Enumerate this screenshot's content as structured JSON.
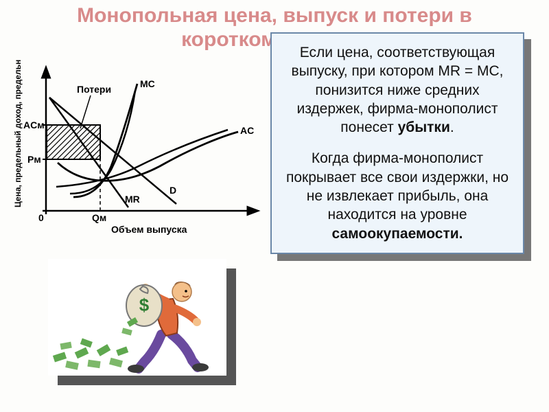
{
  "title": "Монопольная цена, выпуск и потери в коротком периоде",
  "textbox": {
    "p1_pre": "Если цена, соответствующая выпуску, при котором MR = MC, понизится ниже средних издержек, фирма-монополист понесет ",
    "p1_bold": "убытки",
    "p1_post": ".",
    "p2_pre": "Когда фирма-монополист покрывает все свои издержки, но не извлекает прибыль, она находится на уровне ",
    "p2_bold": "самоокупаемости.",
    "p2_post": ""
  },
  "graph": {
    "y_axis_label": "Цена, предельный доход, предельные издержки",
    "x_axis_label": "Объем выпуска",
    "origin_label": "0",
    "labels": {
      "loss": "Потери",
      "mc": "MC",
      "ac": "AC",
      "d": "D",
      "mr": "MR",
      "acm": "ACм",
      "pm": "Pм",
      "qm": "Qм"
    },
    "colors": {
      "stroke": "#000000",
      "hatch": "#000000",
      "bg": "#ffffff"
    }
  },
  "illustration": {
    "colors": {
      "skin": "#f4c08a",
      "shirt": "#e06a3a",
      "pants": "#6a4a9e",
      "shoes": "#3a3a3a",
      "bag": "#e8e0c8",
      "bag_outline": "#555",
      "dollar": "#2e7d32",
      "cash": "#5fa84f",
      "cash2": "#7db86a"
    }
  }
}
